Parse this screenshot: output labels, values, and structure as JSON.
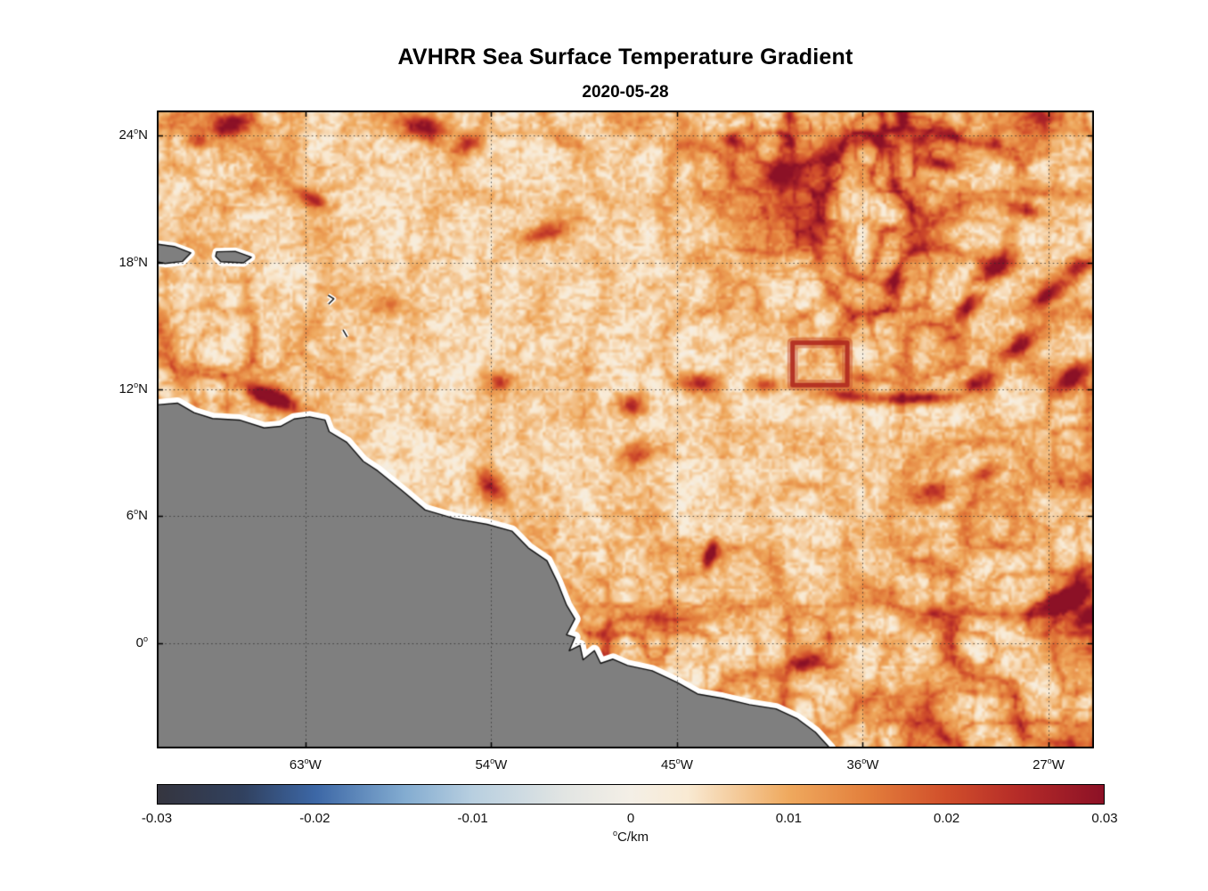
{
  "chart_data": {
    "type": "heatmap",
    "title": "AVHRR Sea Surface Temperature Gradient",
    "date": "2020-05-28",
    "x_axis": {
      "degree": "o",
      "ticks": [
        {
          "num": "63",
          "hem": "W",
          "lon": -63
        },
        {
          "num": "54",
          "hem": "W",
          "lon": -54
        },
        {
          "num": "45",
          "hem": "W",
          "lon": -45
        },
        {
          "num": "36",
          "hem": "W",
          "lon": -36
        },
        {
          "num": "27",
          "hem": "W",
          "lon": -27
        }
      ],
      "range_lon": [
        -70.2,
        -24.8
      ]
    },
    "y_axis": {
      "degree": "o",
      "ticks": [
        {
          "num": "24",
          "hem": "N",
          "lat": 24
        },
        {
          "num": "18",
          "hem": "N",
          "lat": 18
        },
        {
          "num": "12",
          "hem": "N",
          "lat": 12
        },
        {
          "num": "6",
          "hem": "N",
          "lat": 6
        },
        {
          "num": "0",
          "hem": "",
          "lat": 0
        }
      ],
      "range_lat": [
        -4.97,
        25.18
      ]
    },
    "colorbar": {
      "degree": "o",
      "unit": "C/km",
      "range": [
        -0.03,
        0.03
      ],
      "ticks": [
        {
          "label": "-0.03",
          "value": -0.03
        },
        {
          "label": "-0.02",
          "value": -0.02
        },
        {
          "label": "-0.01",
          "value": -0.01
        },
        {
          "label": "0",
          "value": 0
        },
        {
          "label": "0.01",
          "value": 0.01
        },
        {
          "label": "0.02",
          "value": 0.02
        },
        {
          "label": "0.03",
          "value": 0.03
        }
      ],
      "stops": [
        {
          "t": 0.0,
          "c": "#35353f"
        },
        {
          "t": 0.09,
          "c": "#31415f"
        },
        {
          "t": 0.167,
          "c": "#3c67a6"
        },
        {
          "t": 0.26,
          "c": "#82abd0"
        },
        {
          "t": 0.333,
          "c": "#b8cfe0"
        },
        {
          "t": 0.43,
          "c": "#e2e5e3"
        },
        {
          "t": 0.5,
          "c": "#f4efe6"
        },
        {
          "t": 0.56,
          "c": "#f9ead3"
        },
        {
          "t": 0.667,
          "c": "#efa95e"
        },
        {
          "t": 0.75,
          "c": "#e37f3c"
        },
        {
          "t": 0.833,
          "c": "#d14f2b"
        },
        {
          "t": 0.91,
          "c": "#b52b28"
        },
        {
          "t": 1.0,
          "c": "#8c1126"
        }
      ]
    },
    "field": {
      "base_value": 0.004,
      "filament_range": [
        0.01,
        0.03
      ],
      "noise_seed": 7
    },
    "features_format": [
      "lon",
      "lat",
      "amplitude_C_per_km",
      "sigma_lon_deg",
      "sigma_lat_deg",
      "rotation_deg"
    ],
    "features": [
      [
        -64.75,
        11.6,
        0.034,
        0.9,
        0.28,
        22
      ],
      [
        -64.7,
        11.65,
        0.016,
        1.6,
        0.6,
        22
      ],
      [
        -66.5,
        24.6,
        0.02,
        0.9,
        0.45,
        -20
      ],
      [
        -68.3,
        23.75,
        0.014,
        0.5,
        0.3,
        0
      ],
      [
        -62.6,
        21.0,
        0.018,
        0.8,
        0.35,
        30
      ],
      [
        -57.2,
        24.45,
        0.024,
        1.0,
        0.55,
        5
      ],
      [
        -55.2,
        23.65,
        0.015,
        0.7,
        0.4,
        -15
      ],
      [
        -51.5,
        19.4,
        0.017,
        1.2,
        0.4,
        -15
      ],
      [
        -42.1,
        23.7,
        0.017,
        0.9,
        0.4,
        20
      ],
      [
        -40.2,
        22.1,
        0.013,
        0.7,
        0.4,
        0
      ],
      [
        -32.1,
        22.7,
        0.019,
        1.1,
        0.35,
        10
      ],
      [
        -29.5,
        17.8,
        0.026,
        0.9,
        0.45,
        -30
      ],
      [
        -26.9,
        16.5,
        0.024,
        1.0,
        0.4,
        -35
      ],
      [
        -25.4,
        17.8,
        0.022,
        0.8,
        0.4,
        -20
      ],
      [
        -30.8,
        15.9,
        0.02,
        0.9,
        0.4,
        -40
      ],
      [
        -28.4,
        14.0,
        0.022,
        1.0,
        0.4,
        -30
      ],
      [
        -25.8,
        12.5,
        0.026,
        1.1,
        0.45,
        -40
      ],
      [
        -30.3,
        12.3,
        0.02,
        0.9,
        0.4,
        -20
      ],
      [
        -33.5,
        11.55,
        0.022,
        1.8,
        0.28,
        0
      ],
      [
        -36.8,
        11.7,
        0.018,
        1.2,
        0.3,
        5
      ],
      [
        -43.9,
        12.3,
        0.016,
        0.8,
        0.4,
        0
      ],
      [
        -40.6,
        12.2,
        0.015,
        0.8,
        0.35,
        0
      ],
      [
        -47.1,
        11.25,
        0.019,
        0.7,
        0.5,
        0
      ],
      [
        -53.6,
        12.3,
        0.017,
        0.6,
        0.45,
        0
      ],
      [
        -54.1,
        7.45,
        0.021,
        0.5,
        0.9,
        -35
      ],
      [
        -43.3,
        4.2,
        0.026,
        0.3,
        0.7,
        15
      ],
      [
        -32.6,
        7.0,
        0.019,
        1.0,
        0.5,
        -20
      ],
      [
        -30.0,
        8.0,
        0.016,
        0.9,
        0.4,
        -30
      ],
      [
        -26.0,
        2.1,
        0.027,
        1.4,
        0.5,
        -25
      ],
      [
        -24.9,
        1.2,
        0.022,
        1.0,
        0.5,
        -25
      ],
      [
        -38.7,
        -1.0,
        0.018,
        0.8,
        0.35,
        -20
      ],
      [
        -47.0,
        9.0,
        0.012,
        0.8,
        0.5,
        0
      ],
      [
        -59.0,
        16.0,
        0.01,
        0.8,
        0.5,
        0
      ],
      [
        -28.0,
        20.5,
        0.016,
        0.9,
        0.35,
        15
      ],
      [
        -34.5,
        17.0,
        0.013,
        0.9,
        0.4,
        -20
      ]
    ],
    "rect_feature": {
      "lon_min": -39.4,
      "lon_max": -36.75,
      "lat_min": 12.2,
      "lat_max": 14.2,
      "color": "#b5301f"
    },
    "grid": {
      "style": "dotted",
      "color": "#2d2d2d"
    },
    "land": {
      "fill": "#7f7f7f",
      "outline": "#111111",
      "halo": "#ffffff",
      "coast": [
        [
          -70.4,
          11.25
        ],
        [
          -69.2,
          11.35
        ],
        [
          -68.4,
          10.9
        ],
        [
          -67.5,
          10.62
        ],
        [
          -66.2,
          10.55
        ],
        [
          -65.0,
          10.18
        ],
        [
          -64.2,
          10.25
        ],
        [
          -63.55,
          10.6
        ],
        [
          -62.8,
          10.7
        ],
        [
          -62.05,
          10.55
        ],
        [
          -61.85,
          10.0
        ],
        [
          -61.0,
          9.5
        ],
        [
          -60.2,
          8.6
        ],
        [
          -59.5,
          8.15
        ],
        [
          -58.3,
          7.2
        ],
        [
          -57.2,
          6.3
        ],
        [
          -55.8,
          5.9
        ],
        [
          -54.2,
          5.62
        ],
        [
          -53.0,
          5.3
        ],
        [
          -52.2,
          4.5
        ],
        [
          -51.3,
          3.9
        ],
        [
          -50.8,
          2.9
        ],
        [
          -50.35,
          1.8
        ],
        [
          -49.95,
          1.15
        ],
        [
          -50.35,
          0.4
        ],
        [
          -49.95,
          0.28
        ],
        [
          -50.22,
          -0.35
        ],
        [
          -49.7,
          -0.1
        ],
        [
          -49.55,
          -0.78
        ],
        [
          -49.0,
          -0.35
        ],
        [
          -48.7,
          -0.95
        ],
        [
          -48.1,
          -0.75
        ],
        [
          -47.4,
          -1.05
        ],
        [
          -46.2,
          -1.3
        ],
        [
          -45.0,
          -1.85
        ],
        [
          -44.0,
          -2.4
        ],
        [
          -42.8,
          -2.6
        ],
        [
          -41.5,
          -2.9
        ],
        [
          -40.2,
          -3.1
        ],
        [
          -39.2,
          -3.55
        ],
        [
          -38.3,
          -4.2
        ],
        [
          -37.6,
          -4.95
        ],
        [
          -37.2,
          -5.6
        ],
        [
          -70.5,
          -5.6
        ]
      ],
      "islands": [
        [
          [
            -70.5,
            18.9
          ],
          [
            -69.35,
            18.75
          ],
          [
            -68.55,
            18.45
          ],
          [
            -68.95,
            18.05
          ],
          [
            -69.8,
            17.95
          ],
          [
            -70.5,
            18.1
          ]
        ],
        [
          [
            -67.3,
            18.5
          ],
          [
            -66.4,
            18.52
          ],
          [
            -65.62,
            18.25
          ],
          [
            -66.0,
            17.98
          ],
          [
            -67.1,
            18.03
          ],
          [
            -67.35,
            18.28
          ]
        ]
      ],
      "islets": [
        [
          [
            -61.9,
            16.45
          ],
          [
            -61.62,
            16.28
          ],
          [
            -61.88,
            16.03
          ]
        ],
        [
          [
            -61.18,
            14.82
          ],
          [
            -60.98,
            14.48
          ]
        ]
      ]
    }
  }
}
